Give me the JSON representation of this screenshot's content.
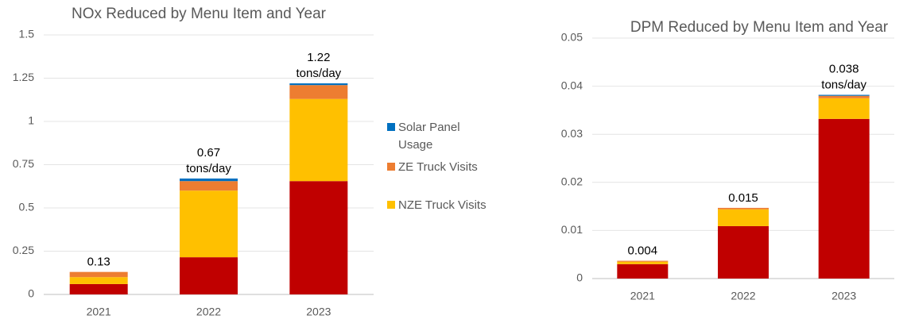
{
  "chart_data": [
    {
      "type": "bar",
      "stacked": true,
      "title": "NOx Reduced by Menu Item and Year",
      "categories": [
        "2021",
        "2022",
        "2023"
      ],
      "series": [
        {
          "color": "#c00000",
          "values": [
            0.06,
            0.215,
            0.655
          ]
        },
        {
          "name": "NZE Truck Visits",
          "color": "#ffc000",
          "values": [
            0.04,
            0.385,
            0.475
          ]
        },
        {
          "name": "ZE Truck Visits",
          "color": "#ed7d31",
          "values": [
            0.03,
            0.055,
            0.08
          ]
        },
        {
          "name": "Solar Panel Usage",
          "color": "#0070c0",
          "values": [
            0,
            0.015,
            0.01
          ]
        }
      ],
      "annotations": [
        [
          "0.13"
        ],
        [
          "0.67",
          "tons/day"
        ],
        [
          "1.22",
          "tons/day"
        ]
      ],
      "ylim": [
        0,
        1.5
      ],
      "yticks": [
        0,
        0.25,
        0.5,
        0.75,
        1,
        1.25,
        1.5
      ],
      "grid": true,
      "legend": "right"
    },
    {
      "type": "bar",
      "stacked": true,
      "title": "DPM Reduced by Menu Item and Year",
      "categories": [
        "2021",
        "2022",
        "2023"
      ],
      "series": [
        {
          "color": "#c00000",
          "values": [
            0.003,
            0.0109,
            0.0332
          ]
        },
        {
          "color": "#ffc000",
          "values": [
            0.0005,
            0.0035,
            0.0043
          ]
        },
        {
          "color": "#ed7d31",
          "values": [
            0.0002,
            0.0003,
            0.0005
          ]
        },
        {
          "color": "#0070c0",
          "values": [
            0,
            0,
            0.0002
          ]
        }
      ],
      "annotations": [
        [
          "0.004"
        ],
        [
          "0.015"
        ],
        [
          "0.038",
          "tons/day"
        ]
      ],
      "ylim": [
        0,
        0.05
      ],
      "yticks": [
        0,
        0.01,
        0.02,
        0.03,
        0.04,
        0.05
      ],
      "grid": true
    }
  ]
}
